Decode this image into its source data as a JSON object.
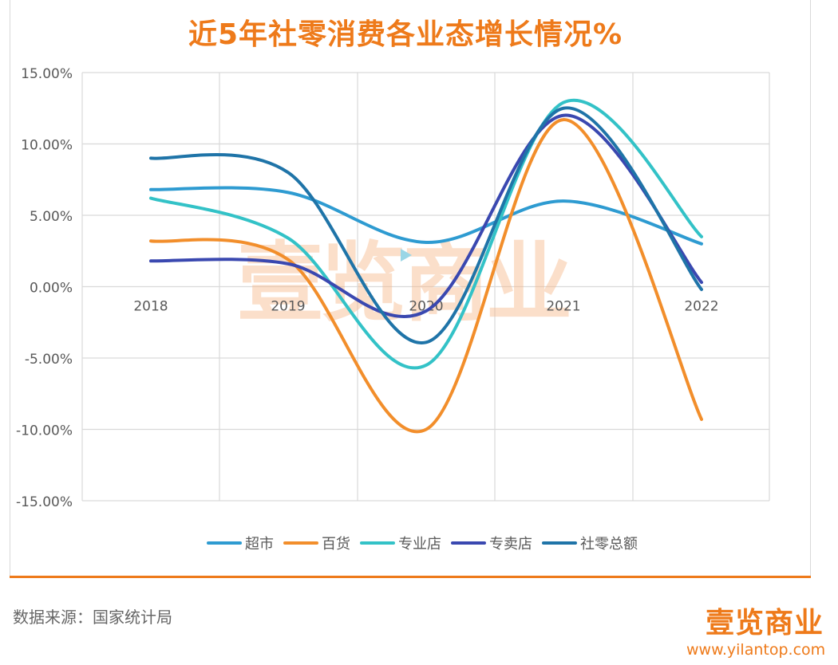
{
  "chart_data": {
    "type": "line",
    "title": "近5年社零消费各业态增长情况%",
    "categories": [
      "2018",
      "2019",
      "2020",
      "2021",
      "2022"
    ],
    "series": [
      {
        "name": "超市",
        "color": "#2e9bd1",
        "values": [
          6.8,
          6.6,
          3.1,
          6.0,
          3.0
        ]
      },
      {
        "name": "百货",
        "color": "#f28e2b",
        "values": [
          3.2,
          1.9,
          -10.0,
          11.7,
          -9.3
        ]
      },
      {
        "name": "专业店",
        "color": "#33c2c7",
        "values": [
          6.2,
          3.4,
          -5.5,
          12.9,
          3.5
        ]
      },
      {
        "name": "专卖店",
        "color": "#3a48b0",
        "values": [
          1.8,
          1.6,
          -1.7,
          12.0,
          0.3
        ]
      },
      {
        "name": "社零总额",
        "color": "#1f74a8",
        "values": [
          9.0,
          8.0,
          -3.9,
          12.5,
          -0.2
        ]
      }
    ],
    "ylim": [
      -15,
      15
    ],
    "yticks": [
      "15.00%",
      "10.00%",
      "5.00%",
      "0.00%",
      "-5.00%",
      "-10.00%",
      "-15.00%"
    ],
    "xlabel": "",
    "ylabel": "",
    "legend": "bottom",
    "grid": true
  },
  "watermark": "壹览商业",
  "footer": {
    "source": "数据来源：国家统计局",
    "logo": "壹览商业",
    "url": "www.yilantop.com"
  },
  "colors": {
    "accent": "#ee7a1a",
    "grid": "#d9d9d9"
  }
}
